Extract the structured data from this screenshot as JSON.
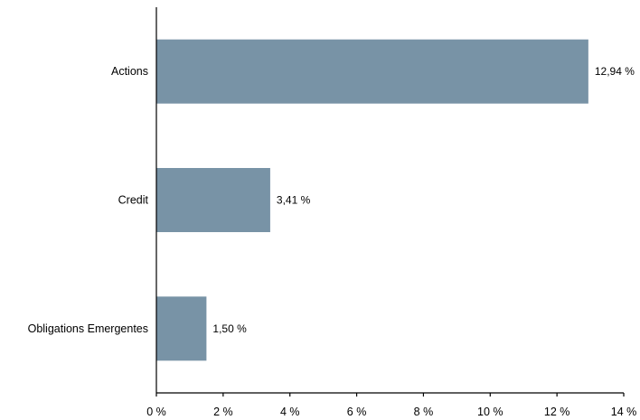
{
  "chart_data": {
    "type": "bar",
    "orientation": "horizontal",
    "categories": [
      "Actions",
      "Credit",
      "Obligations Emergentes"
    ],
    "values": [
      12.94,
      3.41,
      1.5
    ],
    "data_labels": [
      "12,94 %",
      "3,41 %",
      "1,50 %"
    ],
    "xlim": [
      0,
      14
    ],
    "xticks": [
      0,
      2,
      4,
      6,
      8,
      10,
      12,
      14
    ],
    "xtick_labels": [
      "0 %",
      "2 %",
      "4 %",
      "6 %",
      "8 %",
      "10 %",
      "12 %",
      "14 %"
    ],
    "title": "",
    "xlabel": "",
    "ylabel": "",
    "grid": false,
    "legend": "none",
    "colors": {
      "bar": "#7893a6",
      "axis": "#000000",
      "text": "#000000"
    }
  }
}
